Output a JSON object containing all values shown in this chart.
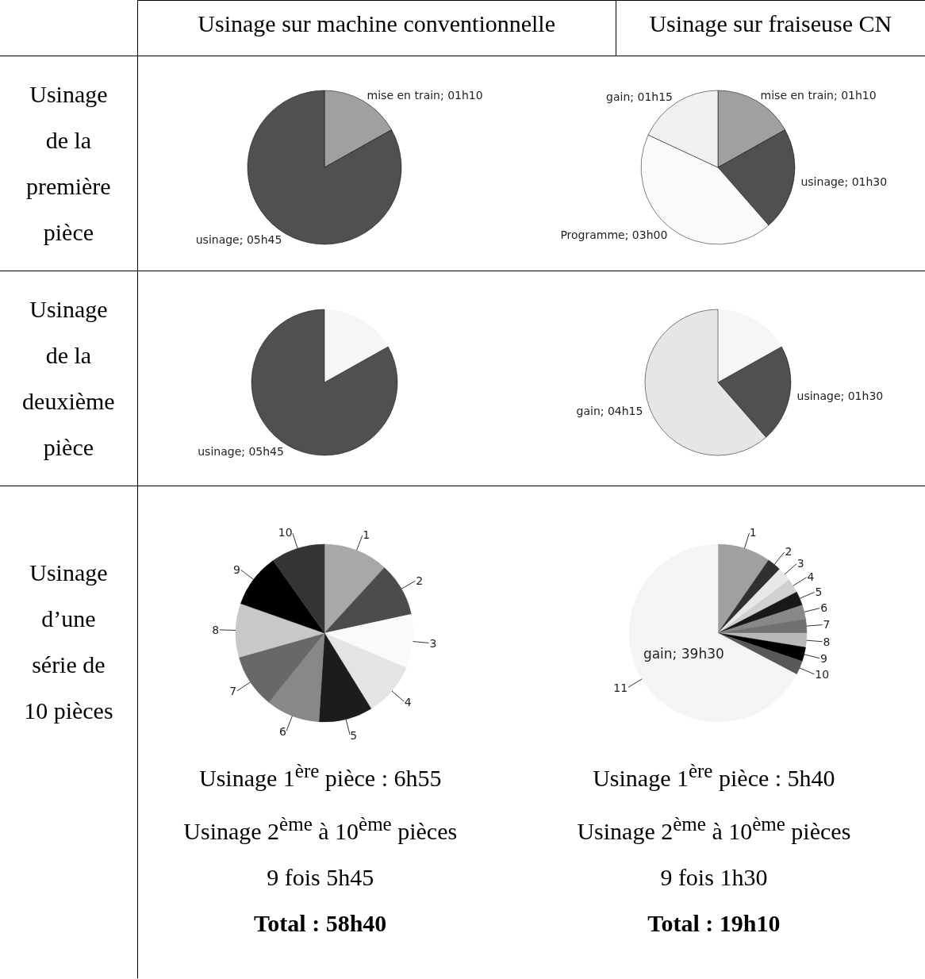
{
  "chart_data": [
    {
      "type": "other",
      "categories": [
        "Usinage sur machine conventionnelle",
        "Usinage sur fraiseuse CN"
      ],
      "y_categories": [
        "Usinage de la première pièce",
        "Usinage de la deuxième pièce",
        "Usinage d’une série de 10 pièces"
      ]
    },
    {
      "type": "pie",
      "categories": [
        "mise en train; 01h10",
        "usinage; 05h45"
      ],
      "values": [
        16.87,
        83.13
      ],
      "colors": [
        "#a0a0a0",
        "#505050"
      ]
    },
    {
      "type": "pie",
      "categories": [
        "mise en train; 01h10",
        "usinage; 01h30",
        "Programme; 03h00",
        "gain; 01h15"
      ],
      "values": [
        16.87,
        21.69,
        43.37,
        18.07
      ],
      "colors": [
        "#a0a0a0",
        "#505050",
        "#fafafa",
        "#f0f0f0"
      ]
    },
    {
      "type": "pie",
      "categories": [
        null,
        "usinage; 05h45"
      ],
      "values": [
        16.87,
        83.13
      ],
      "colors": [
        "#f6f6f6",
        "#505050"
      ]
    },
    {
      "type": "pie",
      "categories": [
        null,
        "usinage; 01h30",
        "gain; 04h15"
      ],
      "values": [
        16.87,
        21.69,
        61.44
      ],
      "colors": [
        "#f6f6f6",
        "#505050",
        "#e6e6e6"
      ]
    },
    {
      "type": "pie",
      "categories": [
        "1",
        "2",
        "3",
        "4",
        "5",
        "6",
        "7",
        "8",
        "9",
        "10"
      ],
      "values": [
        11.8,
        9.8,
        9.8,
        9.8,
        9.8,
        9.8,
        9.8,
        9.8,
        9.8,
        9.8
      ],
      "colors": [
        "#a8a8a8",
        "#4c4c4c",
        "#fafafa",
        "#e4e4e4",
        "#1c1c1c",
        "#888888",
        "#686868",
        "#c8c8c8",
        "#000000",
        "#343434"
      ],
      "annotations": [
        "Usinage 1$^{ère}$ pièce : 6h55",
        "Usinage 2$^{ème}$ à 10$^{ème}$ pièces",
        "9 fois 5h45",
        "Total : 58h40"
      ]
    },
    {
      "type": "pie",
      "categories": [
        "1",
        "2",
        "3",
        "4",
        "5",
        "6",
        "7",
        "8",
        "9",
        "10",
        "11"
      ],
      "values": [
        9.66,
        2.56,
        2.56,
        2.56,
        2.56,
        2.56,
        2.56,
        2.56,
        2.56,
        2.56,
        67.3
      ],
      "colors": [
        "#a0a0a0",
        "#303030",
        "#e8e8e8",
        "#d0d0d0",
        "#181818",
        "#888888",
        "#707070",
        "#b8b8b8",
        "#000000",
        "#585858",
        "#f4f4f4"
      ],
      "value_labels": [
        null,
        null,
        null,
        null,
        null,
        null,
        null,
        null,
        null,
        null,
        "gain; 39h30"
      ],
      "annotations": [
        "Usinage 1$^{ère}$ pièce : 5h40",
        "Usinage 2$^{ème}$ à 10$^{ème}$ pièces",
        "9 fois 1h30",
        "Total : 19h10"
      ]
    }
  ]
}
